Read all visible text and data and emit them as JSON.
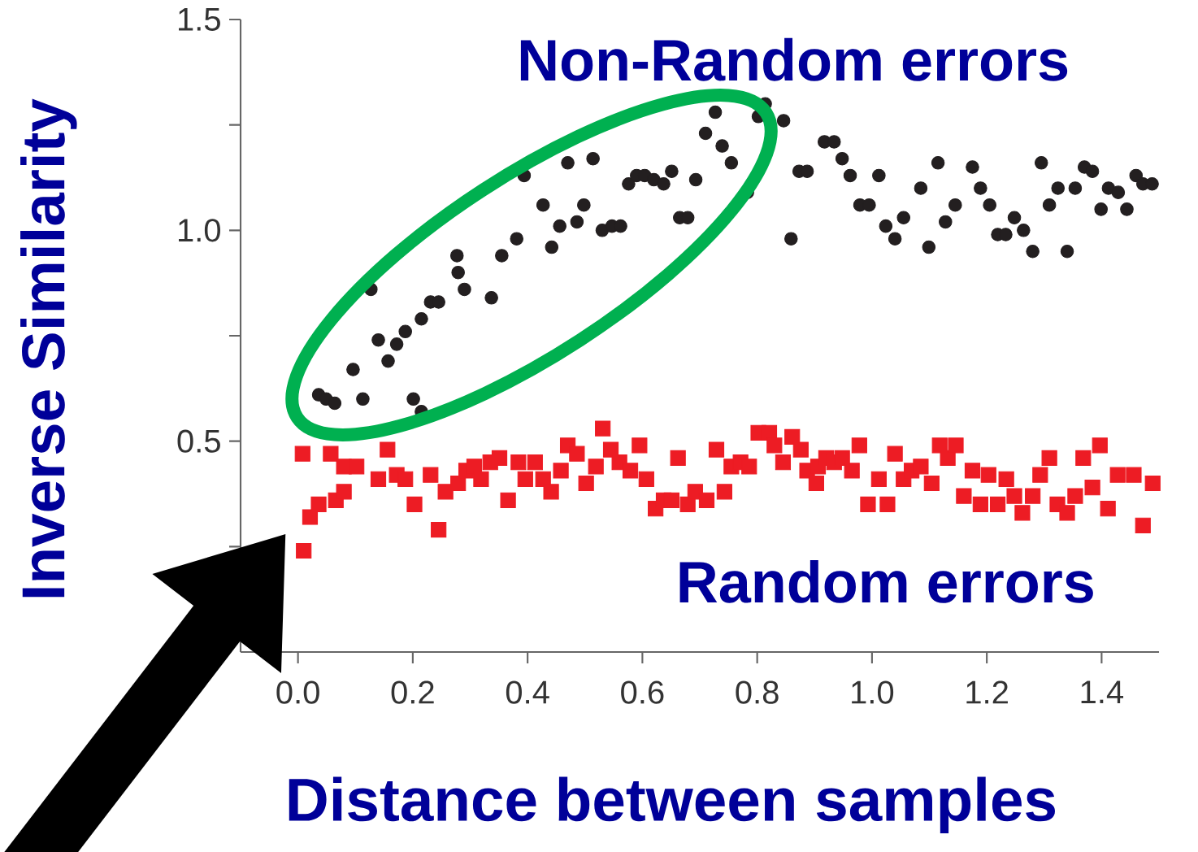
{
  "chart_data": {
    "type": "scatter",
    "xlabel": "Distance between samples",
    "ylabel": "Inverse Similarity",
    "xlim": [
      -0.1,
      1.5
    ],
    "ylim": [
      0,
      1.5
    ],
    "xticks": [
      {
        "value": 0,
        "label": "0.0"
      },
      {
        "value": 0.2,
        "label": "0.2"
      },
      {
        "value": 0.4,
        "label": "0.4"
      },
      {
        "value": 0.6,
        "label": "0.6"
      },
      {
        "value": 0.8,
        "label": "0.8"
      },
      {
        "value": 1.0,
        "label": "1.0"
      },
      {
        "value": 1.2,
        "label": "1.2"
      },
      {
        "value": 1.4,
        "label": "1.4"
      }
    ],
    "yticks": [
      {
        "value": 0.25,
        "label": null
      },
      {
        "value": 0.5,
        "label": "0.5"
      },
      {
        "value": 0.75,
        "label": null
      },
      {
        "value": 1.0,
        "label": "1.0"
      },
      {
        "value": 1.25,
        "label": null
      },
      {
        "value": 1.5,
        "label": "1.5"
      }
    ],
    "series": [
      {
        "name": "Non-Random errors",
        "color": "#231f20",
        "marker": "circle",
        "x": [
          0.036,
          0.049,
          0.064,
          0.096,
          0.113,
          0.127,
          0.14,
          0.157,
          0.172,
          0.187,
          0.201,
          0.215,
          0.215,
          0.231,
          0.245,
          0.277,
          0.279,
          0.29,
          0.337,
          0.355,
          0.381,
          0.394,
          0.427,
          0.442,
          0.456,
          0.47,
          0.486,
          0.498,
          0.514,
          0.53,
          0.547,
          0.562,
          0.576,
          0.59,
          0.604,
          0.62,
          0.637,
          0.651,
          0.665,
          0.679,
          0.693,
          0.71,
          0.727,
          0.739,
          0.755,
          0.783,
          0.802,
          0.814,
          0.846,
          0.859,
          0.873,
          0.887,
          0.917,
          0.934,
          0.948,
          0.962,
          0.979,
          0.995,
          1.012,
          1.024,
          1.04,
          1.055,
          1.085,
          1.099,
          1.115,
          1.128,
          1.145,
          1.175,
          1.189,
          1.205,
          1.219,
          1.233,
          1.248,
          1.264,
          1.28,
          1.295,
          1.309,
          1.324,
          1.34,
          1.354,
          1.37,
          1.384,
          1.399,
          1.412,
          1.429,
          1.444,
          1.46,
          1.472,
          1.488
        ],
        "values": [
          0.61,
          0.6,
          0.59,
          0.67,
          0.6,
          0.86,
          0.74,
          0.69,
          0.73,
          0.76,
          0.6,
          0.57,
          0.79,
          0.83,
          0.83,
          0.94,
          0.9,
          0.86,
          0.84,
          0.94,
          0.98,
          1.13,
          1.06,
          0.96,
          1.01,
          1.16,
          1.02,
          1.06,
          1.17,
          1.0,
          1.01,
          1.01,
          1.11,
          1.13,
          1.13,
          1.12,
          1.11,
          1.14,
          1.03,
          1.03,
          1.12,
          1.23,
          1.28,
          1.2,
          1.16,
          1.09,
          1.27,
          1.3,
          1.26,
          0.98,
          1.14,
          1.14,
          1.21,
          1.21,
          1.17,
          1.13,
          1.06,
          1.06,
          1.13,
          1.01,
          0.98,
          1.03,
          1.1,
          0.96,
          1.16,
          1.02,
          1.06,
          1.15,
          1.1,
          1.06,
          0.99,
          0.99,
          1.03,
          1.0,
          0.95,
          1.16,
          1.06,
          1.1,
          0.95,
          1.1,
          1.15,
          1.14,
          1.05,
          1.1,
          1.09,
          1.05,
          1.13,
          1.11,
          1.11
        ]
      },
      {
        "name": "Random errors",
        "color": "#ed1c24",
        "marker": "square",
        "x": [
          0.008,
          0.01,
          0.021,
          0.036,
          0.057,
          0.066,
          0.08,
          0.08,
          0.102,
          0.14,
          0.156,
          0.172,
          0.187,
          0.203,
          0.231,
          0.245,
          0.257,
          0.279,
          0.293,
          0.307,
          0.319,
          0.335,
          0.351,
          0.366,
          0.384,
          0.396,
          0.413,
          0.427,
          0.441,
          0.458,
          0.47,
          0.486,
          0.502,
          0.519,
          0.531,
          0.545,
          0.56,
          0.579,
          0.595,
          0.607,
          0.623,
          0.637,
          0.651,
          0.662,
          0.679,
          0.692,
          0.712,
          0.729,
          0.743,
          0.755,
          0.771,
          0.786,
          0.802,
          0.821,
          0.83,
          0.845,
          0.861,
          0.876,
          0.887,
          0.903,
          0.906,
          0.92,
          0.934,
          0.948,
          0.965,
          0.978,
          0.993,
          1.012,
          1.027,
          1.04,
          1.055,
          1.069,
          1.085,
          1.104,
          1.118,
          1.132,
          1.146,
          1.16,
          1.175,
          1.189,
          1.203,
          1.219,
          1.234,
          1.248,
          1.262,
          1.28,
          1.293,
          1.309,
          1.323,
          1.34,
          1.354,
          1.368,
          1.384,
          1.397,
          1.411,
          1.428,
          1.456,
          1.472,
          1.489
        ],
        "values": [
          0.47,
          0.24,
          0.32,
          0.35,
          0.47,
          0.36,
          0.38,
          0.44,
          0.44,
          0.41,
          0.48,
          0.42,
          0.41,
          0.35,
          0.42,
          0.29,
          0.38,
          0.4,
          0.43,
          0.44,
          0.41,
          0.45,
          0.46,
          0.36,
          0.45,
          0.41,
          0.45,
          0.41,
          0.38,
          0.43,
          0.49,
          0.47,
          0.4,
          0.44,
          0.53,
          0.48,
          0.45,
          0.43,
          0.49,
          0.41,
          0.34,
          0.36,
          0.36,
          0.46,
          0.35,
          0.38,
          0.36,
          0.48,
          0.38,
          0.44,
          0.45,
          0.44,
          0.52,
          0.52,
          0.49,
          0.45,
          0.51,
          0.48,
          0.43,
          0.4,
          0.44,
          0.46,
          0.45,
          0.46,
          0.43,
          0.49,
          0.35,
          0.41,
          0.35,
          0.47,
          0.41,
          0.43,
          0.44,
          0.4,
          0.49,
          0.46,
          0.49,
          0.37,
          0.43,
          0.35,
          0.42,
          0.35,
          0.41,
          0.37,
          0.33,
          0.37,
          0.42,
          0.46,
          0.35,
          0.33,
          0.37,
          0.46,
          0.39,
          0.49,
          0.34,
          0.42,
          0.42,
          0.3,
          0.4
        ]
      }
    ]
  }
}
